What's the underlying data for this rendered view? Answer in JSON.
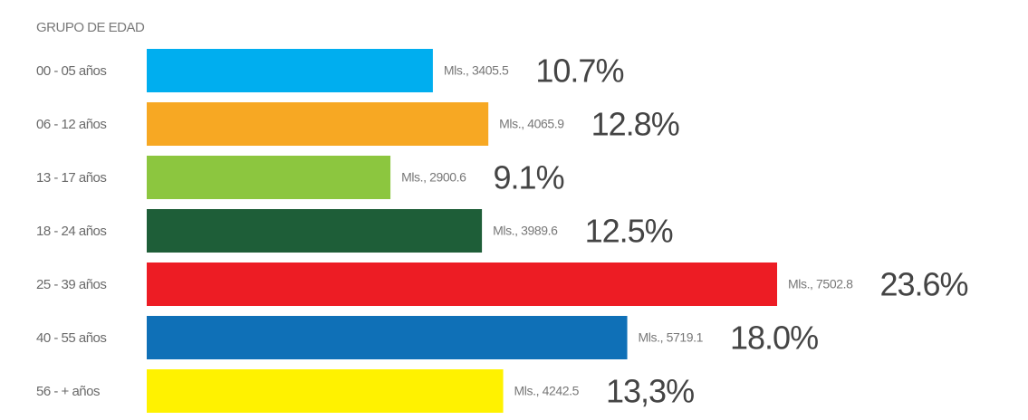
{
  "chart_data": {
    "type": "bar",
    "orientation": "horizontal",
    "title": "GRUPO DE EDAD",
    "categories": [
      "00 - 05 años",
      "06 - 12 años",
      "13 - 17 años",
      "18 - 24 años",
      "25 - 39 años",
      "40 - 55 años",
      "56 - + años"
    ],
    "values": [
      3405.5,
      4065.9,
      2900.6,
      3989.6,
      7502.8,
      5719.1,
      4242.5
    ],
    "value_labels": [
      "Mls., 3405.5",
      "Mls., 4065.9",
      "Mls., 2900.6",
      "Mls., 3989.6",
      "Mls., 7502.8",
      "Mls., 5719.1",
      "Mls., 4242.5"
    ],
    "percentages": [
      10.7,
      12.8,
      9.1,
      12.5,
      23.6,
      18.0,
      13.3
    ],
    "percentage_labels": [
      "10.7%",
      "12.8%",
      "9.1%",
      "12.5%",
      "23.6%",
      "18.0%",
      "13,3%"
    ],
    "colors": [
      "#00aeef",
      "#f7a823",
      "#8cc63f",
      "#1e5e38",
      "#ed1c24",
      "#0f70b7",
      "#fff200"
    ]
  }
}
